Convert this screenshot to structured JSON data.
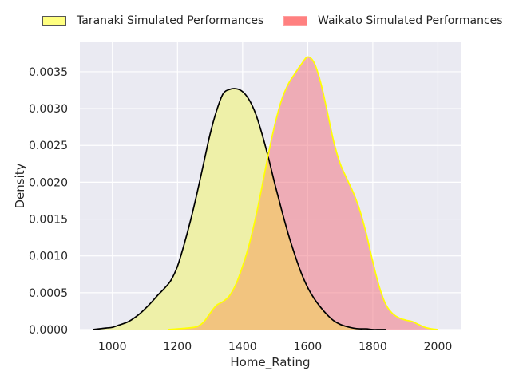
{
  "chart_data": {
    "type": "area",
    "title": "",
    "xlabel": "Home_Rating",
    "ylabel": "Density",
    "xlim": [
      900,
      2070
    ],
    "ylim": [
      0,
      0.0039
    ],
    "x_ticks": [
      1000,
      1200,
      1400,
      1600,
      1800,
      2000
    ],
    "y_ticks": [
      0.0,
      0.0005,
      0.001,
      0.0015,
      0.002,
      0.0025,
      0.003,
      0.0035
    ],
    "y_tick_labels": [
      "0.0000",
      "0.0005",
      "0.0010",
      "0.0015",
      "0.0020",
      "0.0025",
      "0.0030",
      "0.0035"
    ],
    "grid": true,
    "legend_position": "top, outside plot",
    "series": [
      {
        "name": "Taranaki Simulated Performances",
        "fill_color": "#eef0a8",
        "swatch_color": "#ffff80",
        "line_color": "#000000",
        "x": [
          940,
          980,
          1000,
          1020,
          1050,
          1080,
          1100,
          1120,
          1140,
          1160,
          1180,
          1200,
          1220,
          1240,
          1260,
          1280,
          1300,
          1320,
          1340,
          1360,
          1380,
          1400,
          1420,
          1440,
          1460,
          1480,
          1500,
          1520,
          1540,
          1560,
          1580,
          1600,
          1620,
          1640,
          1660,
          1680,
          1700,
          1720,
          1740,
          1760,
          1780,
          1800,
          1820,
          1840
        ],
        "y": [
          0.0,
          2e-05,
          3e-05,
          6e-05,
          0.00011,
          0.0002,
          0.00028,
          0.00037,
          0.00047,
          0.00056,
          0.00067,
          0.00086,
          0.00115,
          0.00148,
          0.00185,
          0.00225,
          0.00265,
          0.00297,
          0.0032,
          0.00326,
          0.00327,
          0.00323,
          0.00312,
          0.00293,
          0.00265,
          0.00232,
          0.00196,
          0.00162,
          0.0013,
          0.00102,
          0.00077,
          0.00057,
          0.00042,
          0.0003,
          0.0002,
          0.00012,
          7e-05,
          4e-05,
          2e-05,
          1e-05,
          1e-05,
          0.0,
          0.0,
          0.0
        ]
      },
      {
        "name": "Waikato Simulated Performances",
        "fill_color": "#f07885",
        "swatch_color": "#ff8080",
        "line_color": "#ffff00",
        "x": [
          1170,
          1200,
          1230,
          1260,
          1280,
          1300,
          1320,
          1340,
          1360,
          1380,
          1400,
          1420,
          1440,
          1460,
          1480,
          1500,
          1520,
          1540,
          1560,
          1580,
          1600,
          1620,
          1640,
          1660,
          1680,
          1700,
          1720,
          1740,
          1760,
          1780,
          1800,
          1820,
          1840,
          1860,
          1880,
          1900,
          1920,
          1940,
          1960,
          1980,
          2000
        ],
        "y": [
          0.0,
          1e-05,
          2e-05,
          4e-05,
          0.0001,
          0.00022,
          0.00033,
          0.00038,
          0.00046,
          0.00062,
          0.00086,
          0.00115,
          0.00152,
          0.00195,
          0.0024,
          0.0028,
          0.00312,
          0.00333,
          0.00347,
          0.0036,
          0.0037,
          0.00362,
          0.00335,
          0.00296,
          0.00255,
          0.00225,
          0.00205,
          0.00186,
          0.00162,
          0.0013,
          0.00092,
          0.00058,
          0.00034,
          0.00022,
          0.00016,
          0.00013,
          0.00011,
          7e-05,
          3e-05,
          1e-05,
          0.0
        ]
      }
    ],
    "overlap_color": "#f2c47f"
  }
}
